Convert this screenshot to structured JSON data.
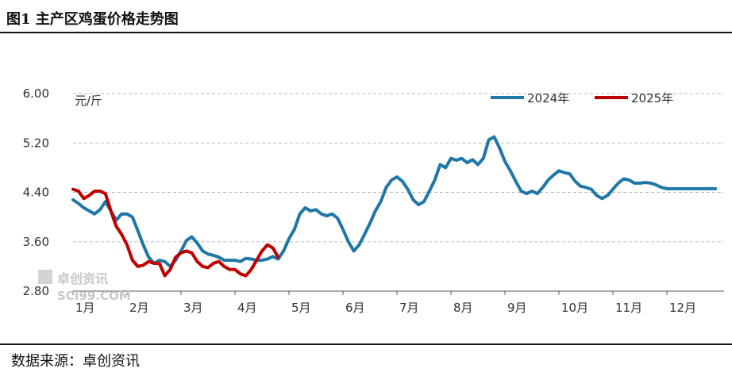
{
  "header": {
    "title": "图1  主产区鸡蛋价格走势图"
  },
  "footer": {
    "source_label": "数据来源：",
    "source_name": "卓创资讯"
  },
  "watermark": {
    "text": "卓创资讯",
    "sub": "SCI99.COM"
  },
  "chart_data": {
    "type": "line",
    "title": "",
    "xlabel": "",
    "ylabel": "",
    "unit": "元/斤",
    "ylim": [
      2.8,
      6.0
    ],
    "yticks": [
      "6.00",
      "5.20",
      "4.40",
      "3.60",
      "2.80"
    ],
    "yvals": [
      6.0,
      5.2,
      4.4,
      3.6,
      2.8
    ],
    "xticks": [
      "1月",
      "2月",
      "3月",
      "4月",
      "5月",
      "6月",
      "7月",
      "8月",
      "9月",
      "10月",
      "11月",
      "12月"
    ],
    "grid": "horizontal-dashed",
    "legend": "top-right",
    "colors": {
      "2024年": "#1f77a8",
      "2025年": "#c00000"
    },
    "series": [
      {
        "name": "2024年",
        "x": [
          0,
          0.1,
          0.2,
          0.3,
          0.4,
          0.5,
          0.6,
          0.7,
          0.8,
          0.9,
          1.0,
          1.1,
          1.2,
          1.3,
          1.4,
          1.5,
          1.6,
          1.7,
          1.8,
          1.9,
          2.0,
          2.1,
          2.2,
          2.3,
          2.4,
          2.5,
          2.6,
          2.7,
          2.8,
          2.9,
          3.0,
          3.1,
          3.2,
          3.3,
          3.4,
          3.5,
          3.6,
          3.7,
          3.8,
          3.9,
          4.0,
          4.1,
          4.2,
          4.3,
          4.4,
          4.5,
          4.6,
          4.7,
          4.8,
          4.9,
          5.0,
          5.1,
          5.2,
          5.3,
          5.4,
          5.5,
          5.6,
          5.7,
          5.8,
          5.9,
          6.0,
          6.1,
          6.2,
          6.3,
          6.4,
          6.5,
          6.6,
          6.7,
          6.8,
          6.9,
          7.0,
          7.1,
          7.2,
          7.3,
          7.4,
          7.5,
          7.6,
          7.7,
          7.8,
          7.9,
          8.0,
          8.1,
          8.2,
          8.3,
          8.4,
          8.5,
          8.6,
          8.7,
          8.8,
          8.9,
          9.0,
          9.1,
          9.2,
          9.3,
          9.4,
          9.5,
          9.6,
          9.7,
          9.8,
          9.9,
          10.0,
          10.1,
          10.2,
          10.3,
          10.4,
          10.5,
          10.6,
          10.7,
          10.8,
          10.9,
          11.0,
          11.1,
          11.2,
          11.3,
          11.4,
          11.5,
          11.6,
          11.7,
          11.8,
          11.9
        ],
        "values": [
          4.28,
          4.22,
          4.15,
          4.1,
          4.05,
          4.12,
          4.25,
          4.1,
          3.95,
          4.05,
          4.05,
          4.0,
          3.78,
          3.55,
          3.35,
          3.25,
          3.3,
          3.28,
          3.2,
          3.3,
          3.45,
          3.62,
          3.68,
          3.58,
          3.45,
          3.4,
          3.38,
          3.35,
          3.3,
          3.3,
          3.3,
          3.28,
          3.33,
          3.32,
          3.3,
          3.3,
          3.32,
          3.36,
          3.32,
          3.45,
          3.65,
          3.8,
          4.05,
          4.15,
          4.1,
          4.12,
          4.05,
          4.02,
          4.05,
          3.98,
          3.8,
          3.6,
          3.45,
          3.55,
          3.72,
          3.9,
          4.1,
          4.25,
          4.48,
          4.6,
          4.65,
          4.58,
          4.45,
          4.28,
          4.2,
          4.25,
          4.42,
          4.6,
          4.85,
          4.8,
          4.95,
          4.92,
          4.95,
          4.88,
          4.93,
          4.85,
          4.95,
          5.25,
          5.3,
          5.12,
          4.9,
          4.75,
          4.58,
          4.42,
          4.38,
          4.42,
          4.38,
          4.48,
          4.6,
          4.68,
          4.75,
          4.72,
          4.7,
          4.58,
          4.5,
          4.48,
          4.45,
          4.35,
          4.3,
          4.35,
          4.45,
          4.55,
          4.62,
          4.6,
          4.55,
          4.55,
          4.56,
          4.55,
          4.52,
          4.48,
          4.46,
          4.46,
          4.46,
          4.46,
          4.46,
          4.46,
          4.46,
          4.46,
          4.46,
          4.46
        ]
      },
      {
        "name": "2025年",
        "x": [
          0,
          0.1,
          0.2,
          0.3,
          0.4,
          0.5,
          0.6,
          0.7,
          0.8,
          0.9,
          1.0,
          1.1,
          1.2,
          1.3,
          1.4,
          1.5,
          1.6,
          1.7,
          1.8,
          1.9,
          2.0,
          2.1,
          2.2,
          2.3,
          2.4,
          2.5,
          2.6,
          2.7,
          2.8,
          2.9,
          3.0,
          3.1,
          3.2,
          3.3,
          3.4,
          3.5,
          3.6,
          3.7,
          3.8
        ],
        "values": [
          4.45,
          4.42,
          4.3,
          4.35,
          4.42,
          4.42,
          4.38,
          4.1,
          3.85,
          3.72,
          3.55,
          3.3,
          3.2,
          3.22,
          3.28,
          3.25,
          3.25,
          3.05,
          3.15,
          3.35,
          3.42,
          3.45,
          3.42,
          3.28,
          3.2,
          3.18,
          3.25,
          3.28,
          3.2,
          3.15,
          3.15,
          3.08,
          3.05,
          3.15,
          3.3,
          3.45,
          3.55,
          3.5,
          3.35
        ]
      }
    ]
  }
}
